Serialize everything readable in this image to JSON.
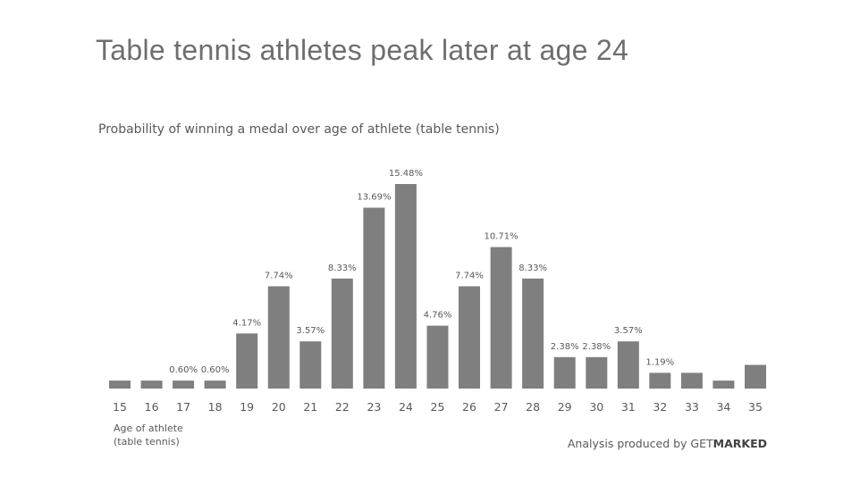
{
  "title": "Table tennis athletes peak later at age 24",
  "subtitle": "Probability of winning a medal over age of athlete (table tennis)",
  "x_axis_label": [
    "Age of athlete",
    "(table tennis)"
  ],
  "credit": {
    "prefix": "Analysis produced by GET",
    "brand_bold": "MARKED"
  },
  "colors": {
    "bar": "#7f7f7f",
    "data_label": "#595959",
    "title": "#6e6e6e"
  },
  "chart_data": {
    "type": "bar",
    "title": "Table tennis athletes peak later at age 24",
    "subtitle": "Probability of winning a medal over age of athlete (table tennis)",
    "xlabel": "Age of athlete (table tennis)",
    "ylabel": "",
    "categories": [
      "15",
      "16",
      "17",
      "18",
      "19",
      "20",
      "21",
      "22",
      "23",
      "24",
      "25",
      "26",
      "27",
      "28",
      "29",
      "30",
      "31",
      "32",
      "33",
      "34",
      "35"
    ],
    "values": [
      0.6,
      0.6,
      0.6,
      0.6,
      4.17,
      7.74,
      3.57,
      8.33,
      13.69,
      15.48,
      4.76,
      7.74,
      10.71,
      8.33,
      2.38,
      2.38,
      3.57,
      1.19,
      1.19,
      0.6,
      1.79
    ],
    "data_labels": [
      "",
      "",
      "0.60%",
      "0.60%",
      "4.17%",
      "7.74%",
      "3.57%",
      "8.33%",
      "13.69%",
      "15.48%",
      "4.76%",
      "7.74%",
      "10.71%",
      "8.33%",
      "2.38%",
      "2.38%",
      "3.57%",
      "1.19%",
      "",
      "",
      ""
    ],
    "ylim": [
      0,
      15.48
    ],
    "unit": "%",
    "grid": false,
    "legend": "none"
  }
}
